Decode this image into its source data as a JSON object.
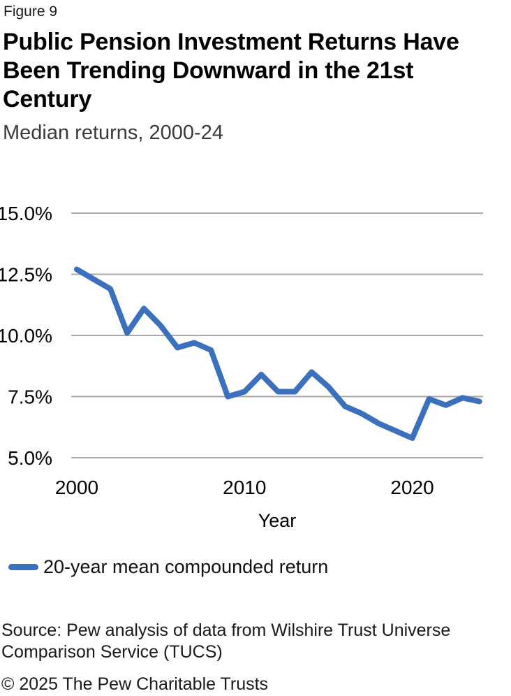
{
  "figure_label": "Figure 9",
  "title": "Public Pension Investment Returns Have Been Trending Downward in the 21st Century",
  "subtitle": "Median returns, 2000-24",
  "legend": {
    "label": "20-year mean compounded return"
  },
  "source": "Source: Pew analysis of data from Wilshire Trust Universe Comparison Service (TUCS)",
  "copyright": "© 2025 The Pew Charitable Trusts",
  "colors": {
    "line": "#3b70bf",
    "gridline": "#a9a9a9",
    "text": "#000000",
    "subtitle_text": "#3a3a3a"
  },
  "chart_data": {
    "type": "line",
    "title": "Public Pension Investment Returns Have Been Trending Downward in the 21st Century",
    "subtitle": "Median returns, 2000-24",
    "xlabel": "Year",
    "ylabel": "",
    "ylim": [
      5.0,
      15.0
    ],
    "grid": true,
    "legend_position": "bottom-left",
    "ytick_values": [
      15.0,
      12.5,
      10.0,
      7.5,
      5.0
    ],
    "ytick_labels": [
      "15.0%",
      "12.5%",
      "10.0%",
      "7.5%",
      "5.0%"
    ],
    "xtick_values": [
      2000,
      2010,
      2020
    ],
    "xtick_labels": [
      "2000",
      "2010",
      "2020"
    ],
    "x": [
      2000,
      2001,
      2002,
      2003,
      2004,
      2005,
      2006,
      2007,
      2008,
      2009,
      2010,
      2011,
      2012,
      2013,
      2014,
      2015,
      2016,
      2017,
      2018,
      2019,
      2020,
      2021,
      2022,
      2023,
      2024
    ],
    "series": [
      {
        "name": "20-year mean compounded return",
        "unit": "%",
        "values": [
          12.7,
          12.3,
          11.9,
          10.1,
          11.1,
          10.4,
          9.5,
          9.7,
          9.4,
          7.5,
          7.7,
          8.4,
          7.7,
          7.7,
          8.5,
          7.9,
          7.1,
          6.8,
          6.4,
          6.1,
          5.8,
          7.4,
          7.15,
          7.45,
          7.3
        ]
      }
    ]
  }
}
